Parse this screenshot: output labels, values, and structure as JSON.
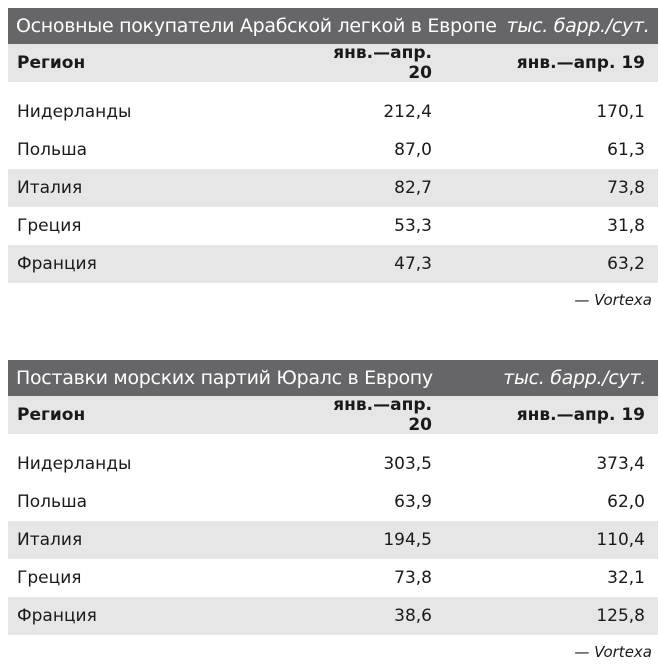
{
  "tables": [
    {
      "title": "Основные покупатели Арабской легкой в Европе",
      "unit": "тыс. барр./сут.",
      "headers": [
        "Регион",
        "янв.—апр. 20",
        "янв.—апр. 19"
      ],
      "rows": [
        {
          "region": "Нидерланды",
          "v20": "212,4",
          "v19": "170,1"
        },
        {
          "region": "Польша",
          "v20": "87,0",
          "v19": "61,3"
        },
        {
          "region": "Италия",
          "v20": "82,7",
          "v19": "73,8"
        },
        {
          "region": "Греция",
          "v20": "53,3",
          "v19": "31,8"
        },
        {
          "region": "Франция",
          "v20": "47,3",
          "v19": "63,2"
        }
      ],
      "source": "— Vortexa"
    },
    {
      "title": "Поставки морских партий Юралс в Европу",
      "unit": "тыс. барр./сут.",
      "headers": [
        "Регион",
        "янв.—апр. 20",
        "янв.—апр. 19"
      ],
      "rows": [
        {
          "region": "Нидерланды",
          "v20": "303,5",
          "v19": "373,4"
        },
        {
          "region": "Польша",
          "v20": "63,9",
          "v19": "62,0"
        },
        {
          "region": "Италия",
          "v20": "194,5",
          "v19": "110,4"
        },
        {
          "region": "Греция",
          "v20": "73,8",
          "v19": "32,1"
        },
        {
          "region": "Франция",
          "v20": "38,6",
          "v19": "125,8"
        }
      ],
      "source": "— Vortexa"
    }
  ]
}
